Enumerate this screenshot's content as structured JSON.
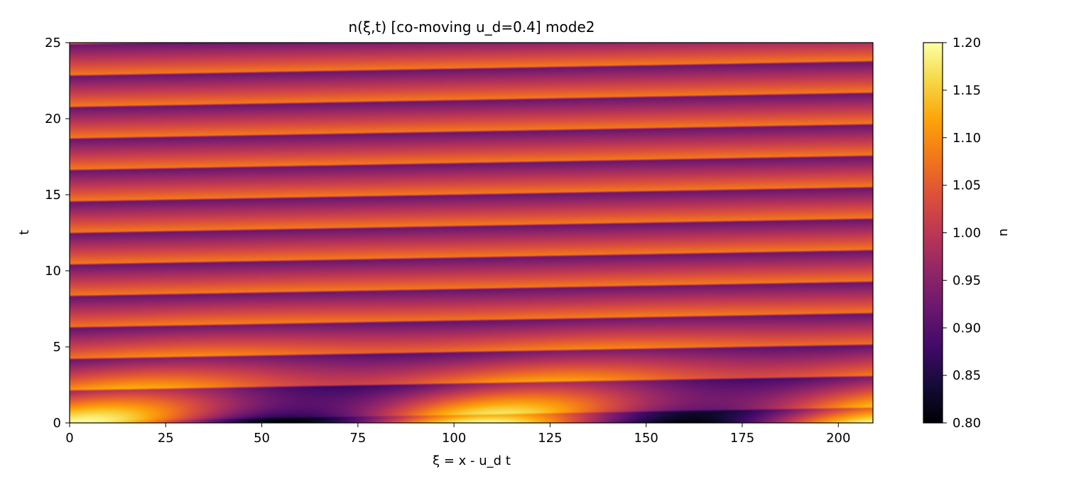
{
  "chart_data": {
    "type": "heatmap",
    "title": "n(ξ,t)  [co-moving u_d=0.4]  mode2",
    "xlabel": "ξ = x - u_d t",
    "ylabel": "t",
    "xlim": [
      0,
      209
    ],
    "ylim": [
      0,
      25
    ],
    "xticks": [
      0,
      25,
      50,
      75,
      100,
      125,
      150,
      175,
      200
    ],
    "yticks": [
      0,
      5,
      10,
      15,
      20,
      25
    ],
    "colormap": "inferno",
    "colorbar": {
      "label": "n",
      "range": [
        0.8,
        1.2
      ],
      "ticks": [
        "0.80",
        "0.85",
        "0.90",
        "0.95",
        "1.00",
        "1.05",
        "1.10",
        "1.15",
        "1.20"
      ]
    },
    "field": {
      "description_of_pattern": "initial mode-2 density perturbation decaying to a traveling stripe pattern",
      "initial_amplitude": 0.2,
      "wavelength_xi": 104.5,
      "max_at_t0_xi": [
        5,
        108,
        209
      ],
      "min_at_t0_xi": [
        55,
        160
      ],
      "stripe_amplitude_late": 0.1,
      "stripe_period_t": 2.07,
      "stripe_slope_dt_dxi": 0.0045
    }
  }
}
